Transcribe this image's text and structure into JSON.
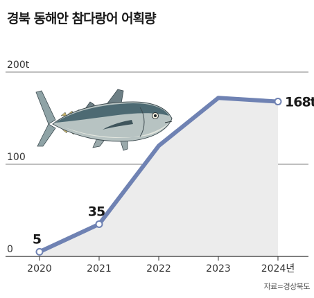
{
  "title": "경북 동해안 참다랑어 어획량",
  "source": "자료=경상북도",
  "colors": {
    "line": "#6f82b3",
    "area": "#ececec",
    "axis": "#333333",
    "grid": "#555555",
    "fish_body": "#aab8b9",
    "fish_back": "#4d6a73"
  },
  "icon": "tuna-fish-illustration",
  "chart_data": {
    "type": "area",
    "categories": [
      "2020",
      "2021",
      "2022",
      "2023",
      "2024년"
    ],
    "values": [
      5,
      35,
      120,
      172,
      168
    ],
    "data_labels": [
      "5",
      "35",
      "",
      "",
      "168t"
    ],
    "ytick_labels": [
      "0",
      "100",
      "200t"
    ],
    "yticks": [
      0,
      100,
      200
    ],
    "ylim": [
      0,
      200
    ],
    "xlabel": "",
    "ylabel": "",
    "grid": true
  }
}
